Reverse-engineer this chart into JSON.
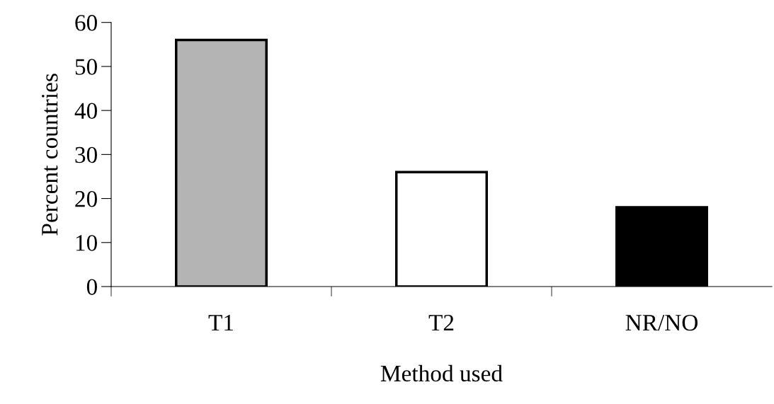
{
  "chart_data": {
    "type": "bar",
    "xlabel": "Method used",
    "ylabel": "Percent countries",
    "categories": [
      "T1",
      "T2",
      "NR/NO"
    ],
    "values": [
      56,
      26,
      18
    ],
    "colors": [
      "#b4b4b4",
      "#ffffff",
      "#000000"
    ],
    "ylim": [
      0,
      60
    ],
    "yticks": [
      0,
      10,
      20,
      30,
      40,
      50,
      60
    ],
    "grid": false,
    "legend": false
  }
}
